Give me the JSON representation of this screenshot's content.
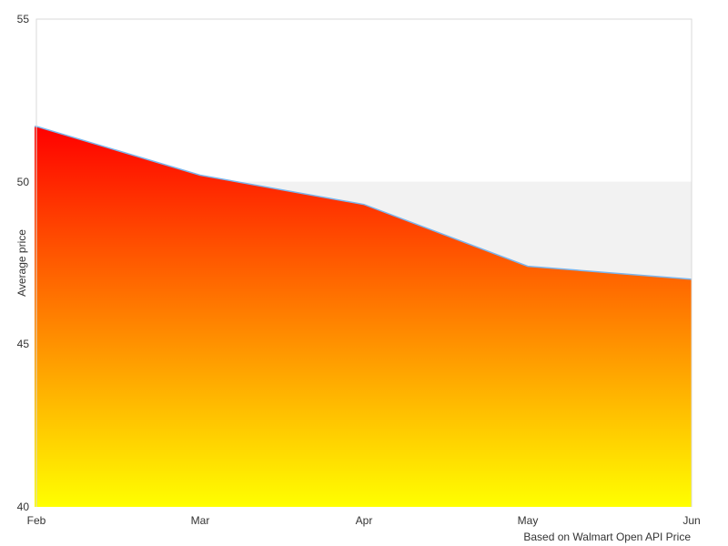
{
  "chart_data": {
    "type": "area",
    "categories": [
      "Feb",
      "Mar",
      "Apr",
      "May",
      "Jun"
    ],
    "series": [
      {
        "name": "Average price",
        "values": [
          51.7,
          50.2,
          49.3,
          47.4,
          47.0
        ]
      }
    ],
    "title": "",
    "xlabel": "",
    "ylabel": "Average price",
    "ylim": [
      40,
      55
    ],
    "yticks": [
      55,
      50,
      45,
      40
    ],
    "grid": "off",
    "legend": "none",
    "plot_band": {
      "from": 45,
      "to": 50,
      "color": "#f2f2f2"
    },
    "colors": {
      "line": "#7cb5ec",
      "area_gradient_top": "#ff0000",
      "area_gradient_bottom": "#ffff00",
      "plot_border": "#d9d9d9",
      "label_text": "#333333",
      "background": "#ffffff"
    },
    "credits": "Based on Walmart Open API Price"
  }
}
